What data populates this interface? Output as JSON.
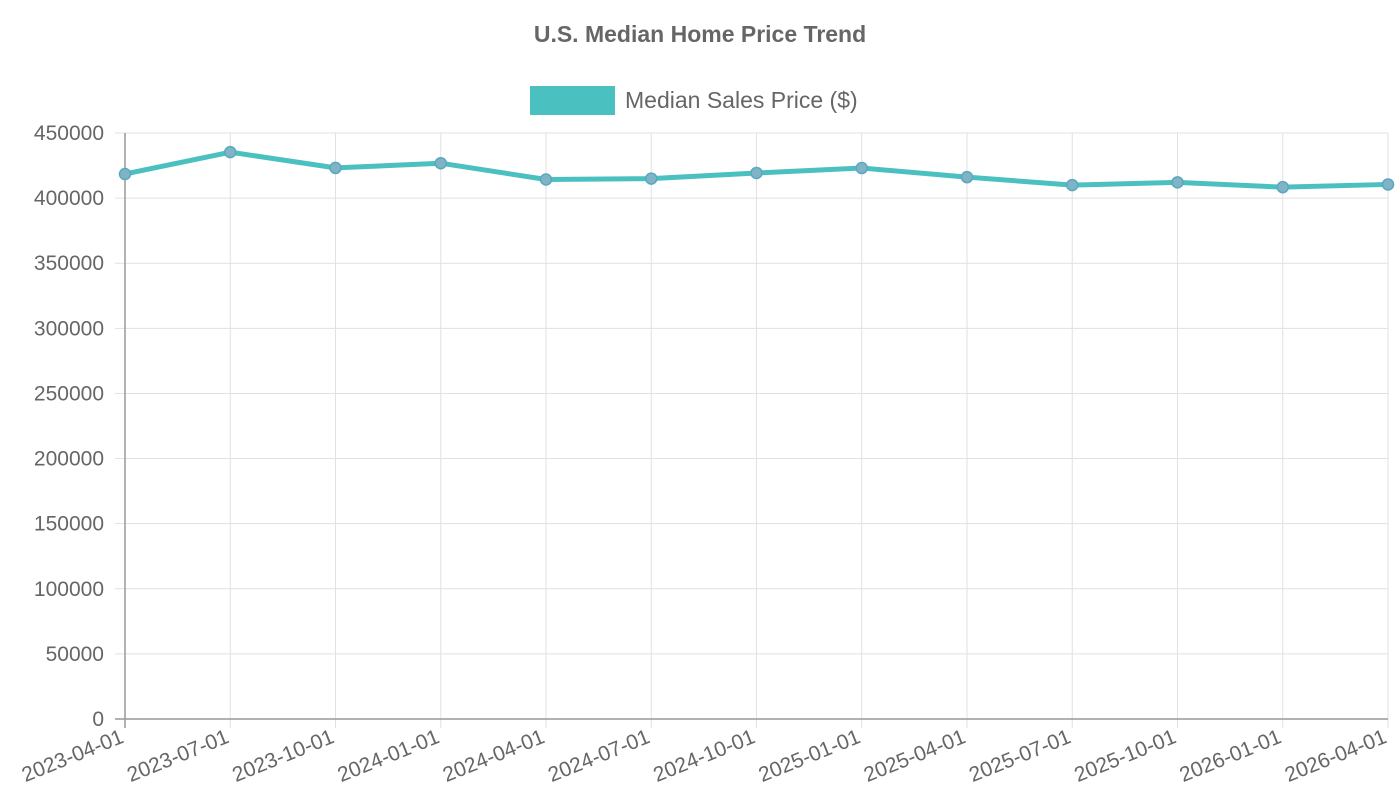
{
  "chart_data": {
    "type": "line",
    "title": "U.S. Median Home Price Trend",
    "xlabel": "",
    "ylabel": "",
    "x": [
      "2023-04-01",
      "2023-07-01",
      "2023-10-01",
      "2024-01-01",
      "2024-04-01",
      "2024-07-01",
      "2024-10-01",
      "2025-01-01",
      "2025-04-01",
      "2025-07-01",
      "2025-10-01",
      "2026-01-01",
      "2026-04-01"
    ],
    "series": [
      {
        "name": "Median Sales Price ($)",
        "values": [
          418500,
          435300,
          423200,
          426800,
          414300,
          415000,
          419300,
          423100,
          416100,
          410000,
          412100,
          408400,
          410500
        ],
        "color": "#4bc0c0"
      }
    ],
    "ylim": [
      0,
      450000
    ],
    "yticks": [
      "0",
      "50000",
      "100000",
      "150000",
      "200000",
      "250000",
      "300000",
      "350000",
      "400000",
      "450000"
    ],
    "grid": true,
    "legend_position": "top"
  }
}
